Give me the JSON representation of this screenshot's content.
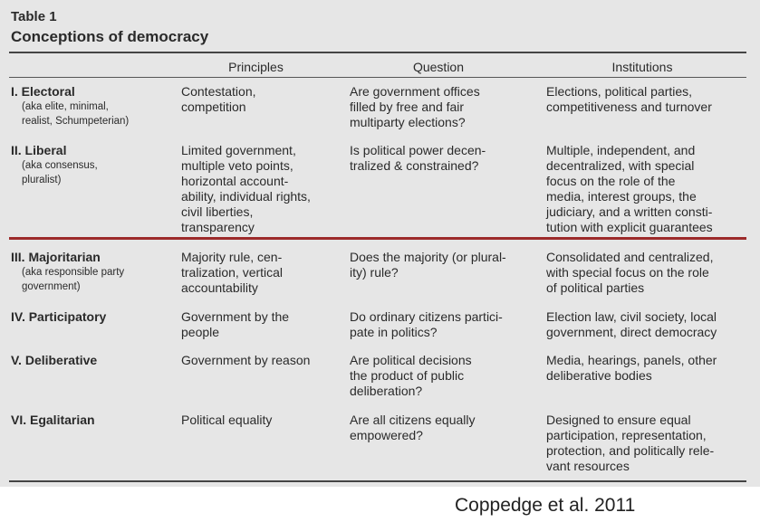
{
  "table": {
    "label": "Table 1",
    "title": "Conceptions of democracy",
    "headers": {
      "principles": "Principles",
      "question": "Question",
      "institutions": "Institutions"
    },
    "rows": [
      {
        "type": "I. Electoral",
        "aka": [
          "(aka elite, minimal,",
          "realist, Schumpeterian)"
        ],
        "principles": [
          "Contestation,",
          "competition"
        ],
        "question": [
          "Are government offices",
          "filled by free and fair",
          "multiparty elections?"
        ],
        "institutions": [
          "Elections, political parties,",
          "competitiveness and turnover"
        ]
      },
      {
        "type": "II. Liberal",
        "aka": [
          "(aka consensus,",
          "pluralist)"
        ],
        "principles": [
          "Limited government,",
          "multiple veto points,",
          "horizontal account-",
          "ability, individual rights,",
          "civil liberties,",
          "transparency"
        ],
        "question": [
          "Is political power decen-",
          "tralized & constrained?"
        ],
        "institutions": [
          "Multiple, independent, and",
          "decentralized, with special",
          "focus on the role of the",
          "media, interest groups, the",
          "judiciary, and a written consti-",
          "tution with explicit guarantees"
        ]
      },
      {
        "type": "III. Majoritarian",
        "aka": [
          "(aka responsible party",
          "government)"
        ],
        "principles": [
          "Majority rule, cen-",
          "tralization, vertical",
          "accountability"
        ],
        "question": [
          "Does the majority (or plural-",
          "ity) rule?"
        ],
        "institutions": [
          "Consolidated and centralized,",
          "with special focus on the role",
          "of political parties"
        ]
      },
      {
        "type": "IV. Participatory",
        "aka": [],
        "principles": [
          "Government by the",
          "people"
        ],
        "question": [
          "Do ordinary citizens partici-",
          "pate in politics?"
        ],
        "institutions": [
          "Election law, civil society, local",
          "government, direct democracy"
        ]
      },
      {
        "type": "V. Deliberative",
        "aka": [],
        "principles": [
          "Government by reason"
        ],
        "question": [
          "Are political decisions",
          "the product of public",
          "deliberation?"
        ],
        "institutions": [
          "Media, hearings, panels, other",
          "deliberative bodies"
        ]
      },
      {
        "type": "VI. Egalitarian",
        "aka": [],
        "principles": [
          "Political equality"
        ],
        "question": [
          "Are all citizens equally",
          "empowered?"
        ],
        "institutions": [
          "Designed to ensure equal",
          "participation, representation,",
          "protection, and politically rele-",
          "vant resources"
        ]
      }
    ]
  },
  "credit": "Coppedge et al. 2011"
}
